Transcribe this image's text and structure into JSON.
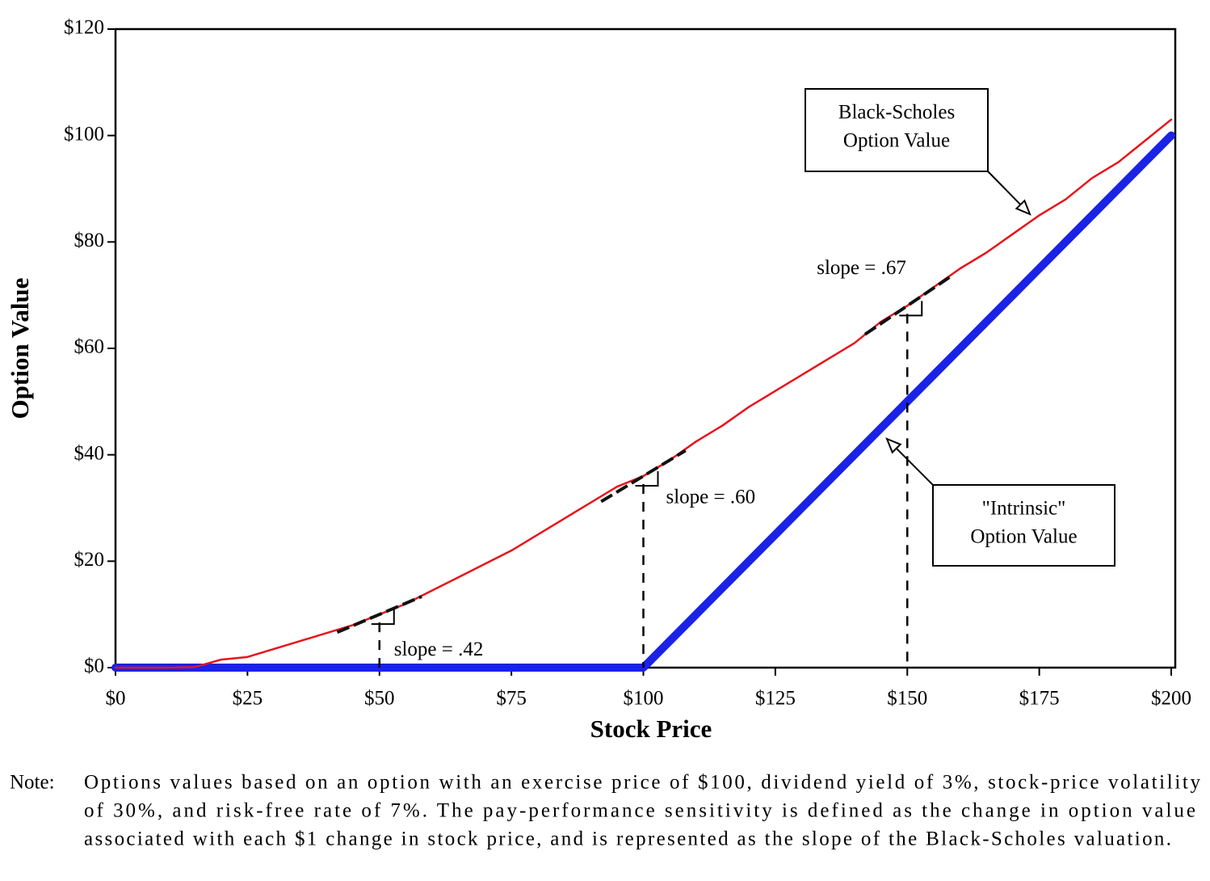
{
  "chart_data": {
    "type": "line",
    "x_label": "Stock Price",
    "y_label": "Option Value",
    "x": [
      0,
      5,
      10,
      15,
      20,
      25,
      30,
      35,
      40,
      45,
      50,
      55,
      60,
      65,
      70,
      75,
      80,
      85,
      90,
      95,
      100,
      105,
      110,
      115,
      120,
      125,
      130,
      135,
      140,
      145,
      150,
      155,
      160,
      165,
      170,
      175,
      180,
      185,
      190,
      195,
      200
    ],
    "series": [
      {
        "name": "Black-Scholes Option Value",
        "color": "#e8141b",
        "values": [
          0,
          0,
          0,
          0.1,
          1.5,
          2,
          3.5,
          5,
          6.5,
          8,
          10,
          12,
          14.5,
          17,
          19.5,
          22,
          25,
          28,
          31,
          34,
          36,
          39,
          42.5,
          45.5,
          49,
          52,
          55,
          58,
          61,
          65,
          68,
          71.5,
          75,
          78,
          81.5,
          85,
          88,
          92,
          95,
          99,
          103
        ]
      },
      {
        "name": "\"Intrinsic\" Option Value",
        "color": "#1a22e6",
        "values": [
          0,
          0,
          0,
          0,
          0,
          0,
          0,
          0,
          0,
          0,
          0,
          0,
          0,
          0,
          0,
          0,
          0,
          0,
          0,
          0,
          0,
          5,
          10,
          15,
          20,
          25,
          30,
          35,
          40,
          45,
          50,
          55,
          60,
          65,
          70,
          75,
          80,
          85,
          90,
          95,
          100
        ]
      }
    ],
    "xlim": [
      0,
      200
    ],
    "ylim": [
      0,
      120
    ],
    "xticks": [
      {
        "value": 0,
        "label": "$0"
      },
      {
        "value": 25,
        "label": "$25"
      },
      {
        "value": 50,
        "label": "$50"
      },
      {
        "value": 75,
        "label": "$75"
      },
      {
        "value": 100,
        "label": "$100"
      },
      {
        "value": 125,
        "label": "$125"
      },
      {
        "value": 150,
        "label": "$150"
      },
      {
        "value": 175,
        "label": "$175"
      },
      {
        "value": 200,
        "label": "$200"
      }
    ],
    "yticks": [
      {
        "value": 0,
        "label": "$0"
      },
      {
        "value": 20,
        "label": "$20"
      },
      {
        "value": 40,
        "label": "$40"
      },
      {
        "value": 60,
        "label": "$60"
      },
      {
        "value": 80,
        "label": "$80"
      },
      {
        "value": 100,
        "label": "$100"
      },
      {
        "value": 120,
        "label": "$120"
      }
    ],
    "tangents": [
      {
        "x": 50,
        "slope": 0.42,
        "label": "slope = .42"
      },
      {
        "x": 100,
        "slope": 0.6,
        "label": "slope = .60"
      },
      {
        "x": 150,
        "slope": 0.67,
        "label": "slope = .67"
      }
    ],
    "callouts": [
      {
        "lines": [
          "Black-Scholes",
          "Option Value"
        ]
      },
      {
        "lines": [
          "\"Intrinsic\"",
          "Option Value"
        ]
      }
    ],
    "note": {
      "label": "Note:",
      "lines": [
        "Options values based on an option with an exercise price of $100, dividend yield of 3%, stock-price volatility",
        "of 30%, and risk-free rate of 7%. The pay-performance sensitivity is defined as the change in option value",
        "associated with each $1 change in stock price, and is represented as the slope of the Black-Scholes valuation."
      ]
    }
  }
}
